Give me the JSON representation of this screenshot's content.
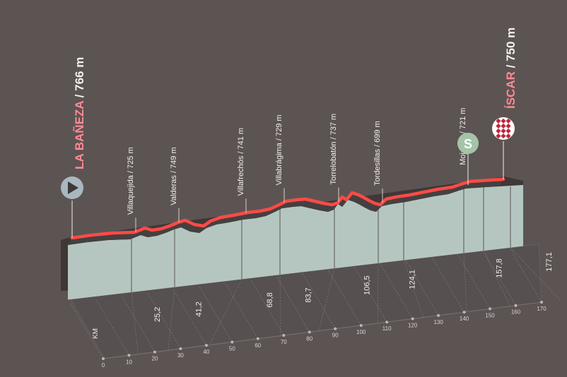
{
  "chart_data": {
    "type": "area",
    "start": {
      "name": "LA BAÑEZA",
      "elevation": "766 m",
      "icon": "play-icon",
      "color": "#a9b8c0"
    },
    "finish": {
      "name": "ÍSCAR",
      "elevation": "750 m",
      "icon": "checkered-flag-icon"
    },
    "sprint": {
      "letter": "S",
      "color": "#a3c4a8"
    },
    "xlabel": "KM",
    "x_ticks": [
      "0",
      "10",
      "20",
      "30",
      "40",
      "50",
      "60",
      "70",
      "80",
      "90",
      "100",
      "110",
      "120",
      "130",
      "140",
      "150",
      "160",
      "170"
    ],
    "distance_total_km": 177.1,
    "waypoints": [
      {
        "name": "Villaquejida",
        "elevation": "725 m",
        "km": 13.5,
        "km_label": "",
        "profile_x": 192
      },
      {
        "name": "Valderas",
        "elevation": "749 m",
        "km": 25.2,
        "km_label": "25,2",
        "profile_x": 253
      },
      {
        "name": "Villafrechós",
        "elevation": "741 m",
        "km": 41.2,
        "km_label": "41,2",
        "profile_x": 348
      },
      {
        "name": "Villabrágima",
        "elevation": "729 m",
        "km": 68.8,
        "km_label": "68,8",
        "profile_x": 402
      },
      {
        "name": "Torrelobatón",
        "elevation": "737 m",
        "km": 83.7,
        "km_label": "83,7",
        "profile_x": 479
      },
      {
        "name": "Tordesillas",
        "elevation": "699 m",
        "km": 106.5,
        "km_label": "106,5",
        "profile_x": 541
      },
      {
        "name": "Mojados",
        "elevation": "721 m",
        "km": 141.0,
        "km_label": "",
        "profile_x": 662
      },
      {
        "name": "",
        "elevation": "",
        "km": 124.1,
        "km_label": "124,1",
        "profile_x": 577
      },
      {
        "name": "",
        "elevation": "",
        "km": 157.8,
        "km_label": "157,8",
        "profile_x": 690
      },
      {
        "name": "",
        "elevation": "",
        "km": 177.1,
        "km_label": "177,1",
        "profile_x": 728
      }
    ],
    "profile_points": [
      [
        102,
        337
      ],
      [
        130,
        333
      ],
      [
        160,
        330
      ],
      [
        190,
        329
      ],
      [
        205,
        323
      ],
      [
        215,
        326
      ],
      [
        228,
        324
      ],
      [
        240,
        320
      ],
      [
        252,
        315
      ],
      [
        262,
        312
      ],
      [
        275,
        318
      ],
      [
        288,
        320
      ],
      [
        298,
        313
      ],
      [
        312,
        308
      ],
      [
        330,
        305
      ],
      [
        350,
        301
      ],
      [
        368,
        299
      ],
      [
        382,
        296
      ],
      [
        395,
        290
      ],
      [
        405,
        285
      ],
      [
        420,
        283
      ],
      [
        432,
        282
      ],
      [
        445,
        285
      ],
      [
        458,
        288
      ],
      [
        470,
        290
      ],
      [
        478,
        287
      ],
      [
        484,
        279
      ],
      [
        490,
        283
      ],
      [
        498,
        273
      ],
      [
        507,
        276
      ],
      [
        515,
        280
      ],
      [
        522,
        284
      ],
      [
        530,
        288
      ],
      [
        538,
        290
      ],
      [
        546,
        282
      ],
      [
        560,
        279
      ],
      [
        580,
        276
      ],
      [
        600,
        272
      ],
      [
        620,
        268
      ],
      [
        640,
        265
      ],
      [
        655,
        260
      ],
      [
        665,
        257
      ],
      [
        680,
        256
      ],
      [
        694,
        255
      ],
      [
        712,
        254
      ]
    ],
    "colors": {
      "background": "#5c5453",
      "profile_fill": "#b5c6c0",
      "profile_shadow": "#3f3837",
      "route_line": "#ff4a45",
      "accent_text": "#ff8a95"
    }
  }
}
